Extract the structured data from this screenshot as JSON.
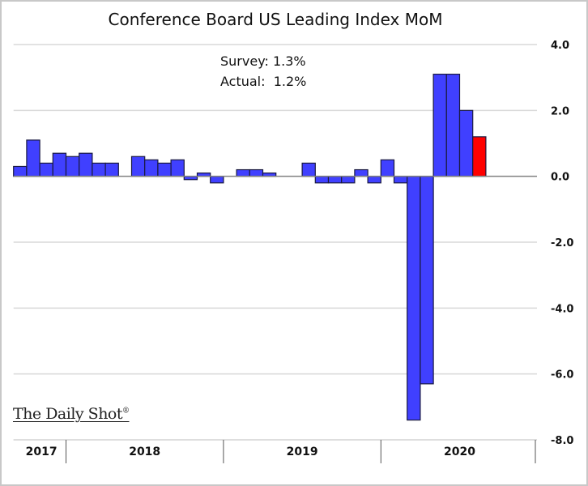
{
  "chart_data": {
    "type": "bar",
    "title": "Conference Board US Leading Index MoM",
    "annotations": [
      "Survey: 1.3%",
      "Actual:  1.2%"
    ],
    "xlabel": "",
    "ylabel": "",
    "ylim": [
      -8.0,
      4.0
    ],
    "yticks": [
      4.0,
      2.0,
      0.0,
      -2.0,
      -4.0,
      -6.0,
      -8.0
    ],
    "ytick_labels": [
      "4.0",
      "2.0",
      "0.0",
      "-2.0",
      "-4.0",
      "-6.0",
      "-8.0"
    ],
    "y_axis_position": "right",
    "grid": true,
    "year_labels": [
      "2017",
      "2018",
      "2019",
      "2020"
    ],
    "categories": [
      "2017-09",
      "2017-10",
      "2017-11",
      "2017-12",
      "2018-01",
      "2018-02",
      "2018-03",
      "2018-04",
      "2018-05",
      "2018-06",
      "2018-07",
      "2018-08",
      "2018-09",
      "2018-10",
      "2018-11",
      "2018-12",
      "2019-01",
      "2019-02",
      "2019-03",
      "2019-04",
      "2019-05",
      "2019-06",
      "2019-07",
      "2019-08",
      "2019-09",
      "2019-10",
      "2019-11",
      "2019-12",
      "2020-01",
      "2020-02",
      "2020-03",
      "2020-04",
      "2020-05",
      "2020-06",
      "2020-07",
      "2020-08"
    ],
    "values": [
      0.3,
      1.1,
      0.4,
      0.7,
      0.6,
      0.7,
      0.4,
      0.4,
      0.0,
      0.6,
      0.5,
      0.4,
      0.5,
      -0.1,
      0.1,
      -0.2,
      0.0,
      0.2,
      0.2,
      0.1,
      0.0,
      0.0,
      0.4,
      -0.2,
      -0.2,
      -0.2,
      0.2,
      -0.2,
      0.5,
      -0.2,
      -7.4,
      -6.3,
      3.1,
      3.1,
      2.0,
      1.2
    ],
    "highlight_index": 35,
    "colors": {
      "bar": "#4040ff",
      "highlight": "#ff0000",
      "outline": "#1a1a40",
      "grid": "#d9d9d9",
      "zero": "#808080"
    }
  },
  "brand": {
    "name": "The Daily Shot",
    "mark": "®"
  }
}
